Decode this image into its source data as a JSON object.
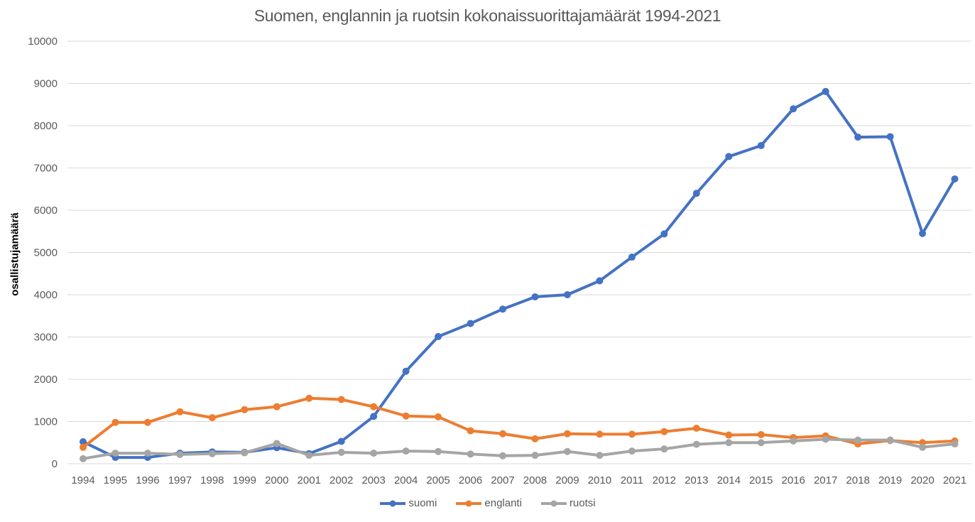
{
  "chart_data": {
    "type": "line",
    "title": "Suomen, englannin ja ruotsin kokonaissuorittajamäärät 1994-2021",
    "xlabel": "",
    "ylabel": "osallistujamäärä",
    "categories": [
      "1994",
      "1995",
      "1996",
      "1997",
      "1998",
      "1999",
      "2000",
      "2001",
      "2002",
      "2003",
      "2004",
      "2005",
      "2006",
      "2007",
      "2008",
      "2009",
      "2010",
      "2011",
      "2012",
      "2013",
      "2014",
      "2015",
      "2016",
      "2017",
      "2018",
      "2019",
      "2020",
      "2021"
    ],
    "series": [
      {
        "name": "suomi",
        "color": "#4472C4",
        "values": [
          520,
          150,
          150,
          250,
          280,
          270,
          380,
          240,
          530,
          1120,
          2190,
          3010,
          3320,
          3660,
          3950,
          4000,
          4330,
          4890,
          5440,
          6400,
          7270,
          7530,
          8400,
          8810,
          7730,
          7740,
          5450,
          6740
        ]
      },
      {
        "name": "englanti",
        "color": "#ED7D31",
        "values": [
          390,
          980,
          980,
          1230,
          1090,
          1280,
          1350,
          1550,
          1520,
          1350,
          1130,
          1110,
          780,
          710,
          590,
          710,
          700,
          700,
          760,
          840,
          680,
          690,
          620,
          660,
          470,
          550,
          500,
          540
        ]
      },
      {
        "name": "ruotsi",
        "color": "#A5A5A5",
        "values": [
          120,
          250,
          250,
          220,
          240,
          260,
          480,
          200,
          270,
          250,
          300,
          290,
          230,
          190,
          200,
          290,
          200,
          300,
          350,
          460,
          500,
          500,
          540,
          580,
          560,
          560,
          390,
          470
        ]
      }
    ],
    "ylim": [
      0,
      10000
    ],
    "yticks": [
      0,
      1000,
      2000,
      3000,
      4000,
      5000,
      6000,
      7000,
      8000,
      9000,
      10000
    ],
    "grid": "horizontal",
    "legend_position": "bottom",
    "colors": {
      "gridline": "#D9D9D9",
      "tick_text": "#595959",
      "title_text": "#595959",
      "ylabel_text": "#000000",
      "background": "#FFFFFF"
    }
  }
}
